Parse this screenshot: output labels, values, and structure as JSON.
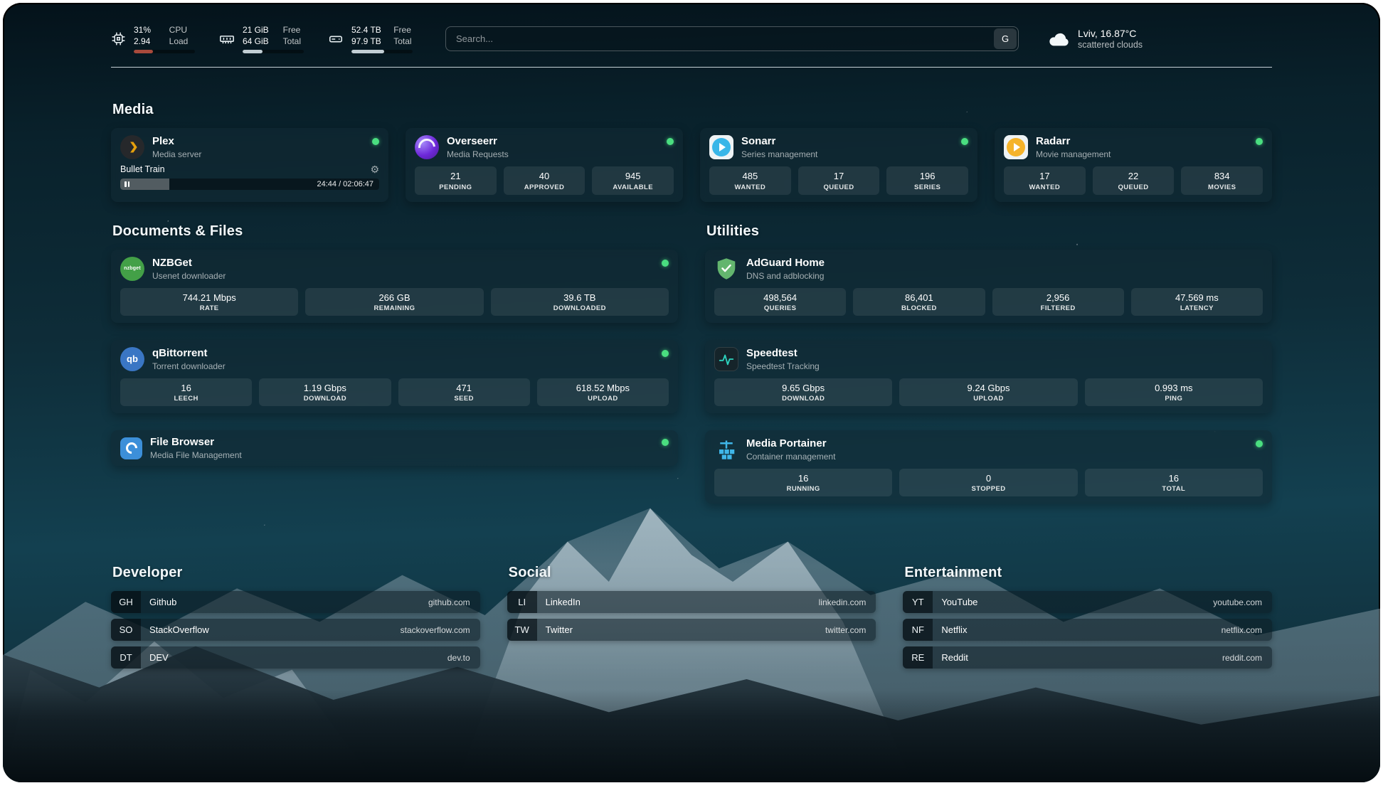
{
  "colors": {
    "status_green": "#4ade80",
    "plex_amber": "#e5a00d",
    "overseerr_purple": "#6d28d9",
    "sonarr_blue": "#38b6e8",
    "radarr_amber": "#f5b32a",
    "nzbget_green": "#43a047",
    "qbittorrent_blue": "#3a76c4",
    "filebrowser_blue": "#3c8fd9",
    "adguard_green": "#63b56e",
    "speedtest_teal": "#2dd4bf",
    "portainer_blue": "#3fb6e8",
    "cpu_bar": "#a84a3c",
    "bar_fill": "#c2ced4"
  },
  "topbar": {
    "cpu": {
      "percent": "31%",
      "load": "2.94",
      "percent_label": "CPU",
      "load_label": "Load",
      "progress": 31
    },
    "memory": {
      "free": "21 GiB",
      "total": "64 GiB",
      "free_label": "Free",
      "total_label": "Total",
      "progress": 33
    },
    "disk": {
      "free": "52.4 TB",
      "total": "97.9 TB",
      "free_label": "Free",
      "total_label": "Total",
      "progress": 54
    },
    "search": {
      "placeholder": "Search...",
      "provider": "G"
    },
    "weather": {
      "location": "Lviv, 16.87°C",
      "description": "scattered clouds"
    }
  },
  "sections": {
    "media": {
      "title": "Media",
      "cards": [
        {
          "name": "Plex",
          "subtitle": "Media server",
          "now_playing": {
            "title": "Bullet Train",
            "time": "24:44 / 02:06:47",
            "progress": 19
          }
        },
        {
          "name": "Overseerr",
          "subtitle": "Media Requests",
          "stats": [
            {
              "value": "21",
              "label": "PENDING"
            },
            {
              "value": "40",
              "label": "APPROVED"
            },
            {
              "value": "945",
              "label": "AVAILABLE"
            }
          ]
        },
        {
          "name": "Sonarr",
          "subtitle": "Series management",
          "stats": [
            {
              "value": "485",
              "label": "WANTED"
            },
            {
              "value": "17",
              "label": "QUEUED"
            },
            {
              "value": "196",
              "label": "SERIES"
            }
          ]
        },
        {
          "name": "Radarr",
          "subtitle": "Movie management",
          "stats": [
            {
              "value": "17",
              "label": "WANTED"
            },
            {
              "value": "22",
              "label": "QUEUED"
            },
            {
              "value": "834",
              "label": "MOVIES"
            }
          ]
        }
      ]
    },
    "documents": {
      "title": "Documents & Files",
      "cards": [
        {
          "name": "NZBGet",
          "subtitle": "Usenet downloader",
          "stats": [
            {
              "value": "744.21 Mbps",
              "label": "RATE"
            },
            {
              "value": "266 GB",
              "label": "REMAINING"
            },
            {
              "value": "39.6 TB",
              "label": "DOWNLOADED"
            }
          ]
        },
        {
          "name": "qBittorrent",
          "subtitle": "Torrent downloader",
          "stats": [
            {
              "value": "16",
              "label": "LEECH"
            },
            {
              "value": "1.19 Gbps",
              "label": "DOWNLOAD"
            },
            {
              "value": "471",
              "label": "SEED"
            },
            {
              "value": "618.52 Mbps",
              "label": "UPLOAD"
            }
          ]
        },
        {
          "name": "File Browser",
          "subtitle": "Media File Management",
          "stats": []
        }
      ]
    },
    "utilities": {
      "title": "Utilities",
      "cards": [
        {
          "name": "AdGuard Home",
          "subtitle": "DNS and adblocking",
          "stats": [
            {
              "value": "498,564",
              "label": "QUERIES"
            },
            {
              "value": "86,401",
              "label": "BLOCKED"
            },
            {
              "value": "2,956",
              "label": "FILTERED"
            },
            {
              "value": "47.569 ms",
              "label": "LATENCY"
            }
          ]
        },
        {
          "name": "Speedtest",
          "subtitle": "Speedtest Tracking",
          "stats": [
            {
              "value": "9.65 Gbps",
              "label": "DOWNLOAD"
            },
            {
              "value": "9.24 Gbps",
              "label": "UPLOAD"
            },
            {
              "value": "0.993 ms",
              "label": "PING"
            }
          ]
        },
        {
          "name": "Media Portainer",
          "subtitle": "Container management",
          "stats": [
            {
              "value": "16",
              "label": "RUNNING"
            },
            {
              "value": "0",
              "label": "STOPPED"
            },
            {
              "value": "16",
              "label": "TOTAL"
            }
          ]
        }
      ]
    },
    "bookmarks": [
      {
        "title": "Developer",
        "items": [
          {
            "abbr": "GH",
            "label": "Github",
            "url": "github.com"
          },
          {
            "abbr": "SO",
            "label": "StackOverflow",
            "url": "stackoverflow.com"
          },
          {
            "abbr": "DT",
            "label": "DEV",
            "url": "dev.to"
          }
        ]
      },
      {
        "title": "Social",
        "items": [
          {
            "abbr": "LI",
            "label": "LinkedIn",
            "url": "linkedin.com"
          },
          {
            "abbr": "TW",
            "label": "Twitter",
            "url": "twitter.com"
          }
        ]
      },
      {
        "title": "Entertainment",
        "items": [
          {
            "abbr": "YT",
            "label": "YouTube",
            "url": "youtube.com"
          },
          {
            "abbr": "NF",
            "label": "Netflix",
            "url": "netflix.com"
          },
          {
            "abbr": "RE",
            "label": "Reddit",
            "url": "reddit.com"
          }
        ]
      }
    ]
  }
}
